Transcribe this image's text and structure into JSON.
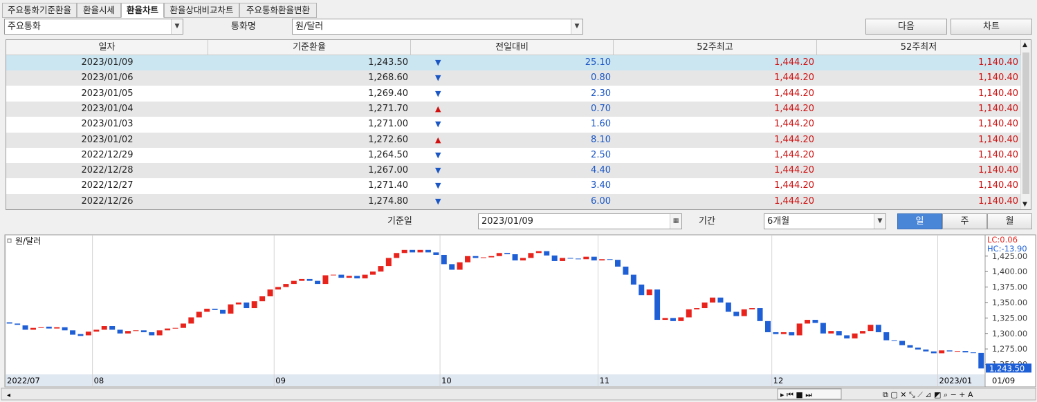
{
  "tabs": [
    "주요통화기준환율",
    "환율시세",
    "환율차트",
    "환율상대비교차트",
    "주요통화환율변환"
  ],
  "active_tab": 2,
  "controls": {
    "group_select": "주요통화",
    "currency_label": "통화명",
    "currency_select": "원/달러",
    "next_button": "다음",
    "chart_button": "차트",
    "date_label": "기준일",
    "date_value": "2023/01/09",
    "period_label": "기간",
    "period_select": "6개월",
    "period_buttons": [
      "일",
      "주",
      "월"
    ],
    "active_period": 0
  },
  "table": {
    "headers": [
      "일자",
      "기준환율",
      "전일대비",
      "52주최고",
      "52주최저"
    ],
    "rows": [
      {
        "date": "2023/01/09",
        "rate": "1,243.50",
        "direction": "down",
        "change": "25.10",
        "high": "1,444.20",
        "low": "1,140.40"
      },
      {
        "date": "2023/01/06",
        "rate": "1,268.60",
        "direction": "down",
        "change": "0.80",
        "high": "1,444.20",
        "low": "1,140.40"
      },
      {
        "date": "2023/01/05",
        "rate": "1,269.40",
        "direction": "down",
        "change": "2.30",
        "high": "1,444.20",
        "low": "1,140.40"
      },
      {
        "date": "2023/01/04",
        "rate": "1,271.70",
        "direction": "up",
        "change": "0.70",
        "high": "1,444.20",
        "low": "1,140.40"
      },
      {
        "date": "2023/01/03",
        "rate": "1,271.00",
        "direction": "down",
        "change": "1.60",
        "high": "1,444.20",
        "low": "1,140.40"
      },
      {
        "date": "2023/01/02",
        "rate": "1,272.60",
        "direction": "up",
        "change": "8.10",
        "high": "1,444.20",
        "low": "1,140.40"
      },
      {
        "date": "2022/12/29",
        "rate": "1,264.50",
        "direction": "down",
        "change": "2.50",
        "high": "1,444.20",
        "low": "1,140.40"
      },
      {
        "date": "2022/12/28",
        "rate": "1,267.00",
        "direction": "down",
        "change": "4.40",
        "high": "1,444.20",
        "low": "1,140.40"
      },
      {
        "date": "2022/12/27",
        "rate": "1,271.40",
        "direction": "down",
        "change": "3.40",
        "high": "1,444.20",
        "low": "1,140.40"
      },
      {
        "date": "2022/12/26",
        "rate": "1,274.80",
        "direction": "down",
        "change": "6.00",
        "high": "1,444.20",
        "low": "1,140.40"
      }
    ],
    "selected_row": 0
  },
  "chart_data": {
    "type": "candlestick",
    "legend": "원/달러",
    "lc_label": "LC:0.06",
    "hc_label": "HC:-13.90",
    "last_label": "1,243.50",
    "last_value": 1243.5,
    "last_date_label": "01/09",
    "up_color": "#e8231c",
    "down_color": "#1e5fd6",
    "open": [
      1318,
      1316,
      1313,
      1306,
      1309,
      1311,
      1308,
      1310,
      1305,
      1299,
      1297,
      1303,
      1306,
      1312,
      1306,
      1300,
      1304,
      1305,
      1302,
      1297,
      1305,
      1308,
      1309,
      1316,
      1326,
      1335,
      1340,
      1338,
      1332,
      1347,
      1350,
      1341,
      1352,
      1360,
      1371,
      1375,
      1380,
      1385,
      1388,
      1385,
      1380,
      1394,
      1395,
      1390,
      1393,
      1389,
      1395,
      1400,
      1409,
      1422,
      1430,
      1435,
      1431,
      1435,
      1431,
      1427,
      1412,
      1403,
      1415,
      1425,
      1422,
      1423,
      1425,
      1430,
      1428,
      1418,
      1422,
      1430,
      1433,
      1426,
      1417,
      1422,
      1421,
      1420,
      1424,
      1418,
      1420,
      1419,
      1408,
      1395,
      1379,
      1362,
      1371,
      1322,
      1325,
      1320,
      1326,
      1339,
      1341,
      1350,
      1358,
      1350,
      1335,
      1328,
      1339,
      1341,
      1320,
      1302,
      1299,
      1302,
      1297,
      1316,
      1322,
      1317,
      1300,
      1304,
      1297,
      1292,
      1300,
      1304,
      1314,
      1302,
      1289,
      1288,
      1281,
      1277,
      1274,
      1271,
      1268,
      1272.6,
      1271,
      1271.7,
      1269.4,
      1268.6
    ],
    "close": [
      1316,
      1314,
      1306,
      1309,
      1310,
      1308,
      1310,
      1305,
      1298,
      1296,
      1303,
      1306,
      1312,
      1306,
      1300,
      1304,
      1305,
      1302,
      1297,
      1305,
      1308,
      1309,
      1316,
      1326,
      1335,
      1340,
      1338,
      1332,
      1347,
      1350,
      1341,
      1352,
      1360,
      1371,
      1375,
      1380,
      1385,
      1388,
      1385,
      1380,
      1394,
      1395,
      1390,
      1393,
      1389,
      1395,
      1400,
      1409,
      1422,
      1430,
      1435,
      1431,
      1435,
      1431,
      1427,
      1412,
      1403,
      1415,
      1425,
      1422,
      1423,
      1425,
      1430,
      1428,
      1418,
      1422,
      1430,
      1433,
      1426,
      1417,
      1422,
      1421,
      1420,
      1424,
      1418,
      1420,
      1419,
      1408,
      1395,
      1379,
      1362,
      1371,
      1322,
      1325,
      1320,
      1326,
      1339,
      1341,
      1350,
      1358,
      1350,
      1335,
      1328,
      1339,
      1341,
      1320,
      1302,
      1299,
      1302,
      1297,
      1316,
      1322,
      1317,
      1300,
      1304,
      1297,
      1292,
      1300,
      1304,
      1314,
      1302,
      1289,
      1288,
      1281,
      1277,
      1274,
      1271,
      1268,
      1272.6,
      1271,
      1271.7,
      1269.4,
      1268.6,
      1243.5
    ],
    "xlim": [
      0,
      124
    ],
    "xticks": [
      {
        "value": 0,
        "label": "2022/07"
      },
      {
        "value": 11,
        "label": "08"
      },
      {
        "value": 34,
        "label": "09"
      },
      {
        "value": 55,
        "label": "10"
      },
      {
        "value": 75,
        "label": "11"
      },
      {
        "value": 97,
        "label": "12"
      },
      {
        "value": 118,
        "label": "2023/01"
      }
    ],
    "ylim": [
      1235,
      1456
    ],
    "yticks": [
      {
        "value": 1250,
        "label": "1,250.00"
      },
      {
        "value": 1275,
        "label": "1,275.00"
      },
      {
        "value": 1300,
        "label": "1,300.00"
      },
      {
        "value": 1325,
        "label": "1,325.00"
      },
      {
        "value": 1350,
        "label": "1,350.00"
      },
      {
        "value": 1375,
        "label": "1,375.00"
      },
      {
        "value": 1400,
        "label": "1,400.00"
      },
      {
        "value": 1425,
        "label": "1,425.00"
      }
    ]
  }
}
